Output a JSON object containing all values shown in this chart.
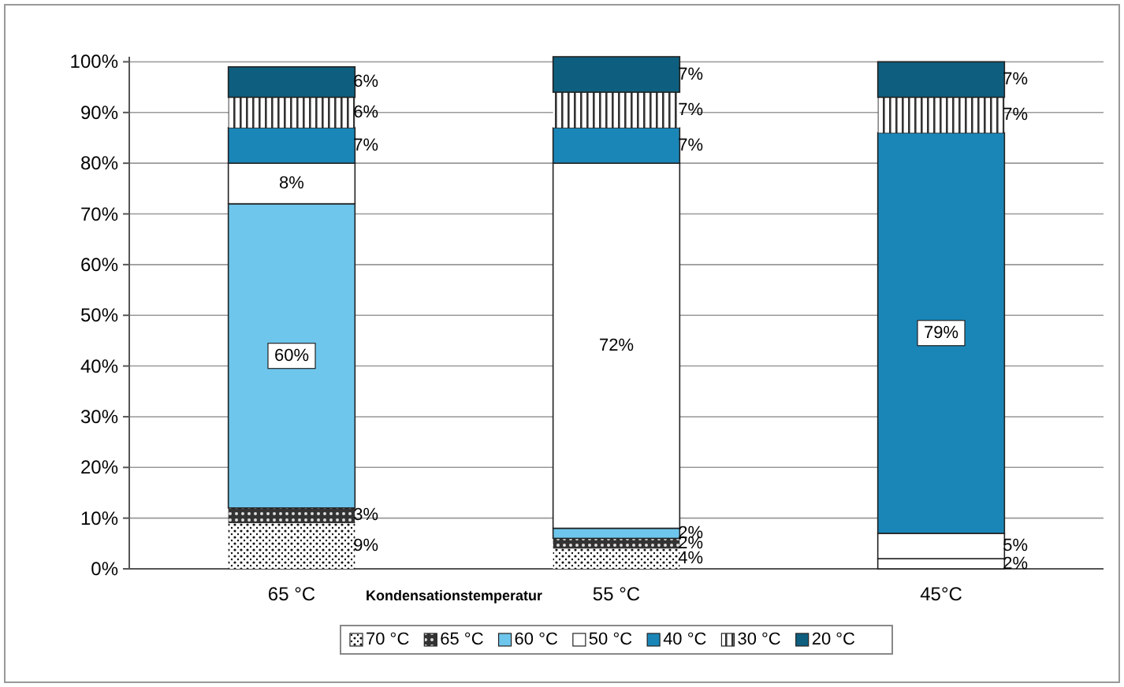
{
  "chart_data": {
    "type": "bar",
    "stacked": true,
    "xlabel": "Kondensationstemperatur",
    "categories": [
      "65 °C",
      "55 °C",
      "45°C"
    ],
    "series": [
      {
        "name": "70 °C",
        "color": "#ffffff",
        "values": [
          9,
          4,
          null
        ],
        "value_labels": [
          "9%",
          "4%",
          null
        ]
      },
      {
        "name": "65 °C",
        "color": "#333333",
        "values": [
          3,
          2,
          null
        ],
        "value_labels": [
          "3%",
          "2%",
          null
        ]
      },
      {
        "name": "60 °C",
        "color": "#6ec6ec",
        "colors": [
          "#6ec6ec",
          "#6ec6ec",
          "#ffffff"
        ],
        "values": [
          60,
          2,
          2
        ],
        "value_labels": [
          "60%",
          "2%",
          "2%"
        ]
      },
      {
        "name": "50 °C",
        "color": "#ffffff",
        "values": [
          8,
          72,
          5
        ],
        "value_labels": [
          "8%",
          "72%",
          "5%"
        ]
      },
      {
        "name": "40 °C",
        "color": "#1a86b8",
        "values": [
          7,
          7,
          79
        ],
        "value_labels": [
          "7%",
          "7%",
          "79%"
        ]
      },
      {
        "name": "30 °C",
        "color": "#ffffff",
        "values": [
          6,
          7,
          7
        ],
        "value_labels": [
          "6%",
          "7%",
          "7%"
        ]
      },
      {
        "name": "20 °C",
        "color": "#0e5f7f",
        "values": [
          6,
          7,
          7
        ],
        "value_labels": [
          "6%",
          "7%",
          "7%"
        ]
      }
    ],
    "ylim": [
      0,
      101
    ],
    "yticks": [
      {
        "value": 0,
        "label": "0%"
      },
      {
        "value": 10,
        "label": "10%"
      },
      {
        "value": 20,
        "label": "20%"
      },
      {
        "value": 30,
        "label": "30%"
      },
      {
        "value": 40,
        "label": "40%"
      },
      {
        "value": 50,
        "label": "50%"
      },
      {
        "value": 60,
        "label": "60%"
      },
      {
        "value": 70,
        "label": "70%"
      },
      {
        "value": 80,
        "label": "80%"
      },
      {
        "value": 90,
        "label": "90%"
      },
      {
        "value": 100,
        "label": "100%"
      }
    ],
    "grid": "y",
    "legend": "bottom"
  }
}
